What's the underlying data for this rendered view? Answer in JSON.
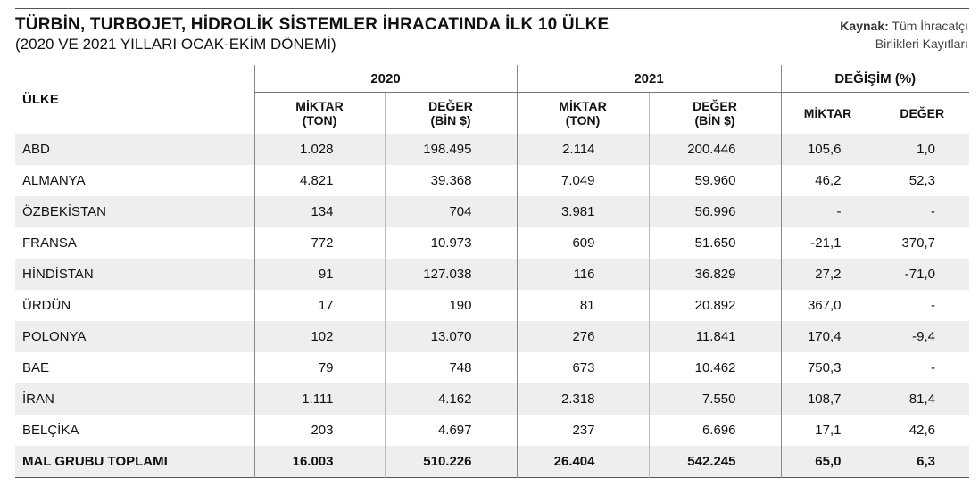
{
  "title": "TÜRBİN, TURBOJET, HİDROLİK SİSTEMLER İHRACATINDA İLK 10 ÜLKE",
  "subtitle": "(2020 VE 2021 YILLARI OCAK-EKİM DÖNEMİ)",
  "source": {
    "label": "Kaynak:",
    "line1": "Tüm İhracatçı",
    "line2": "Birlikleri Kayıtları"
  },
  "headers": {
    "country": "ÜLKE",
    "year_2020": "2020",
    "year_2021": "2021",
    "change": "DEĞİŞİM (%)",
    "amount_l1": "MİKTAR",
    "amount_l2": "(TON)",
    "value_l1": "DEĞER",
    "value_l2": "(BİN $)",
    "change_amount": "MİKTAR",
    "change_value": "DEĞER"
  },
  "rows": [
    {
      "country": "ABD",
      "m2020": "1.028",
      "d2020": "198.495",
      "m2021": "2.114",
      "d2021": "200.446",
      "cm": "105,6",
      "cd": "1,0"
    },
    {
      "country": "ALMANYA",
      "m2020": "4.821",
      "d2020": "39.368",
      "m2021": "7.049",
      "d2021": "59.960",
      "cm": "46,2",
      "cd": "52,3"
    },
    {
      "country": "ÖZBEKİSTAN",
      "m2020": "134",
      "d2020": "704",
      "m2021": "3.981",
      "d2021": "56.996",
      "cm": "-",
      "cd": "-"
    },
    {
      "country": "FRANSA",
      "m2020": "772",
      "d2020": "10.973",
      "m2021": "609",
      "d2021": "51.650",
      "cm": "-21,1",
      "cd": "370,7"
    },
    {
      "country": "HİNDİSTAN",
      "m2020": "91",
      "d2020": "127.038",
      "m2021": "116",
      "d2021": "36.829",
      "cm": "27,2",
      "cd": "-71,0"
    },
    {
      "country": "ÜRDÜN",
      "m2020": "17",
      "d2020": "190",
      "m2021": "81",
      "d2021": "20.892",
      "cm": "367,0",
      "cd": "-"
    },
    {
      "country": "POLONYA",
      "m2020": "102",
      "d2020": "13.070",
      "m2021": "276",
      "d2021": "11.841",
      "cm": "170,4",
      "cd": "-9,4"
    },
    {
      "country": "BAE",
      "m2020": "79",
      "d2020": "748",
      "m2021": "673",
      "d2021": "10.462",
      "cm": "750,3",
      "cd": "-"
    },
    {
      "country": "İRAN",
      "m2020": "1.111",
      "d2020": "4.162",
      "m2021": "2.318",
      "d2021": "7.550",
      "cm": "108,7",
      "cd": "81,4"
    },
    {
      "country": "BELÇİKA",
      "m2020": "203",
      "d2020": "4.697",
      "m2021": "237",
      "d2021": "6.696",
      "cm": "17,1",
      "cd": "42,6"
    }
  ],
  "total": {
    "country": "MAL GRUBU TOPLAMI",
    "m2020": "16.003",
    "d2020": "510.226",
    "m2021": "26.404",
    "d2021": "542.245",
    "cm": "65,0",
    "cd": "6,3"
  },
  "colors": {
    "shade": "#eeeeee",
    "rule": "#555555"
  }
}
